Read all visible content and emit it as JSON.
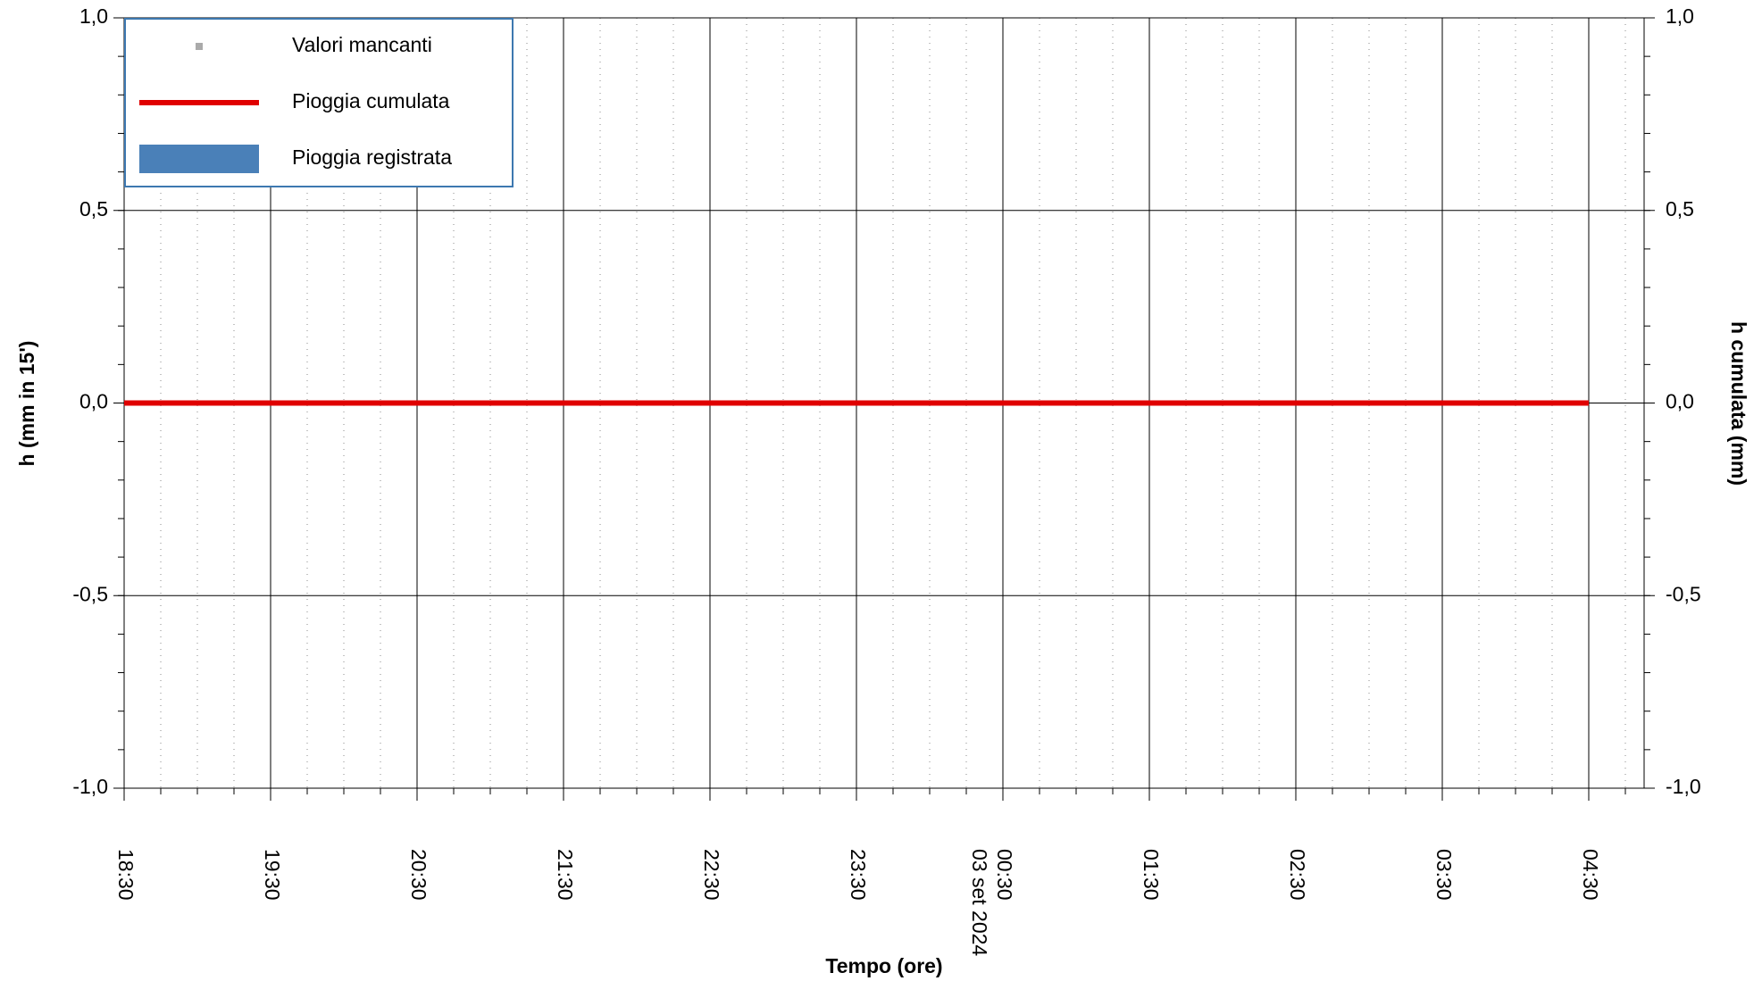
{
  "chart_data": {
    "type": "line",
    "x_label": "Tempo (ore)",
    "y_label": "h (mm in 15')",
    "y2_label": "h cumulata (mm)",
    "categories": [
      "18:30",
      "19:30",
      "20:30",
      "21:30",
      "22:30",
      "23:30",
      "00:30",
      "01:30",
      "02:30",
      "03:30",
      "04:30"
    ],
    "date_label": {
      "index": 6,
      "text": "03 set 2024"
    },
    "series": [
      {
        "name": "Valori mancanti",
        "color": "#aaaaaa",
        "kind": "marker",
        "values": [
          null,
          null,
          null,
          null,
          null,
          null,
          null,
          null,
          null,
          null,
          null
        ]
      },
      {
        "name": "Pioggia cumulata",
        "color": "#e00000",
        "kind": "line",
        "axis": "y2",
        "values": [
          0,
          0,
          0,
          0,
          0,
          0,
          0,
          0,
          0,
          0,
          0
        ]
      },
      {
        "name": "Pioggia registrata",
        "color": "#4a80b8",
        "kind": "bar",
        "values": [
          0,
          0,
          0,
          0,
          0,
          0,
          0,
          0,
          0,
          0,
          0
        ]
      }
    ],
    "ylim": [
      -1,
      1
    ],
    "yticks": [
      {
        "value": -1,
        "label": "-1,0"
      },
      {
        "value": -0.5,
        "label": "-0,5"
      },
      {
        "value": 0,
        "label": "0,0"
      },
      {
        "value": 0.5,
        "label": "0,5"
      },
      {
        "value": 1,
        "label": "1,0"
      }
    ],
    "y2lim": [
      -1,
      1
    ],
    "y2ticks": [
      {
        "value": -1,
        "label": "-1,0"
      },
      {
        "value": -0.5,
        "label": "-0,5"
      },
      {
        "value": 0,
        "label": "0,0"
      },
      {
        "value": 0.5,
        "label": "0,5"
      },
      {
        "value": 1,
        "label": "1,0"
      }
    ],
    "grid": true,
    "legend": "top-left"
  }
}
